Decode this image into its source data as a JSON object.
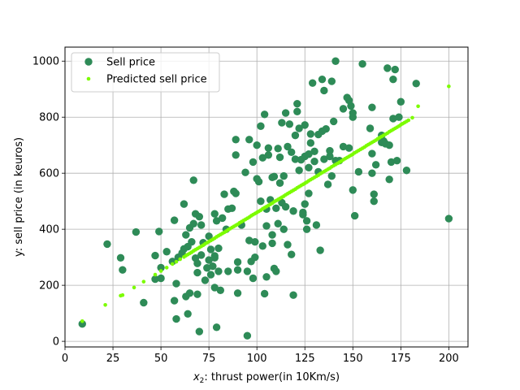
{
  "chart_data": {
    "type": "scatter",
    "xlabel_math": "x",
    "xlabel_sub": "2",
    "xlabel_rest": ": thrust power(in 10Km/s)",
    "ylabel": "y: sell price (in keuros)",
    "xlim": [
      0,
      210
    ],
    "ylim": [
      -20,
      1050
    ],
    "xticks": [
      0,
      25,
      50,
      75,
      100,
      125,
      150,
      175,
      200
    ],
    "yticks": [
      0,
      200,
      400,
      600,
      800,
      1000
    ],
    "grid": true,
    "legend_position": "top-left",
    "series": [
      {
        "name": "Sell price",
        "color": "#2e8b57",
        "marker": "large-circle",
        "points": [
          [
            9,
            62
          ],
          [
            22,
            347
          ],
          [
            29,
            298
          ],
          [
            30,
            255
          ],
          [
            37,
            390
          ],
          [
            41,
            138
          ],
          [
            47,
            222
          ],
          [
            47,
            306
          ],
          [
            49,
            392
          ],
          [
            50,
            225
          ],
          [
            50,
            263
          ],
          [
            53,
            320
          ],
          [
            56,
            285
          ],
          [
            57,
            145
          ],
          [
            57,
            432
          ],
          [
            58,
            80
          ],
          [
            58,
            206
          ],
          [
            59,
            300
          ],
          [
            61,
            315
          ],
          [
            62,
            330
          ],
          [
            62,
            490
          ],
          [
            63,
            380
          ],
          [
            63,
            160
          ],
          [
            64,
            338
          ],
          [
            64,
            98
          ],
          [
            65,
            172
          ],
          [
            65,
            405
          ],
          [
            66,
            355
          ],
          [
            67,
            575
          ],
          [
            67,
            420
          ],
          [
            68,
            455
          ],
          [
            68,
            297
          ],
          [
            69,
            278
          ],
          [
            69,
            168
          ],
          [
            69,
            245
          ],
          [
            70,
            35
          ],
          [
            70,
            445
          ],
          [
            71,
            308
          ],
          [
            71,
            415
          ],
          [
            72,
            352
          ],
          [
            73,
            218
          ],
          [
            74,
            262
          ],
          [
            75,
            375
          ],
          [
            75,
            290
          ],
          [
            76,
            238
          ],
          [
            76,
            328
          ],
          [
            77,
            268
          ],
          [
            78,
            298
          ],
          [
            78,
            455
          ],
          [
            78,
            305
          ],
          [
            78,
            192
          ],
          [
            79,
            430
          ],
          [
            79,
            50
          ],
          [
            80,
            250
          ],
          [
            80,
            332
          ],
          [
            81,
            182
          ],
          [
            82,
            440
          ],
          [
            83,
            525
          ],
          [
            84,
            400
          ],
          [
            85,
            250
          ],
          [
            85,
            472
          ],
          [
            87,
            475
          ],
          [
            88,
            535
          ],
          [
            89,
            665
          ],
          [
            89,
            720
          ],
          [
            89,
            528
          ],
          [
            90,
            255
          ],
          [
            90,
            172
          ],
          [
            90,
            283
          ],
          [
            92,
            415
          ],
          [
            94,
            603
          ],
          [
            95,
            250
          ],
          [
            95,
            20
          ],
          [
            96,
            720
          ],
          [
            96,
            360
          ],
          [
            97,
            285
          ],
          [
            98,
            640
          ],
          [
            98,
            225
          ],
          [
            99,
            300
          ],
          [
            99,
            355
          ],
          [
            100,
            700
          ],
          [
            100,
            580
          ],
          [
            101,
            570
          ],
          [
            102,
            768
          ],
          [
            102,
            500
          ],
          [
            103,
            655
          ],
          [
            103,
            340
          ],
          [
            104,
            810
          ],
          [
            104,
            170
          ],
          [
            105,
            412
          ],
          [
            105,
            230
          ],
          [
            105,
            472
          ],
          [
            106,
            690
          ],
          [
            106,
            665
          ],
          [
            107,
            505
          ],
          [
            108,
            585
          ],
          [
            108,
            350
          ],
          [
            108,
            380
          ],
          [
            109,
            588
          ],
          [
            109,
            260
          ],
          [
            110,
            250
          ],
          [
            110,
            475
          ],
          [
            111,
            688
          ],
          [
            111,
            420
          ],
          [
            112,
            657
          ],
          [
            112,
            565
          ],
          [
            113,
            780
          ],
          [
            113,
            495
          ],
          [
            114,
            590
          ],
          [
            114,
            400
          ],
          [
            115,
            815
          ],
          [
            115,
            480
          ],
          [
            116,
            695
          ],
          [
            116,
            345
          ],
          [
            117,
            775
          ],
          [
            118,
            675
          ],
          [
            118,
            310
          ],
          [
            119,
            165
          ],
          [
            119,
            465
          ],
          [
            120,
            650
          ],
          [
            120,
            735
          ],
          [
            121,
            848
          ],
          [
            121,
            820
          ],
          [
            122,
            760
          ],
          [
            122,
            610
          ],
          [
            123,
            648
          ],
          [
            124,
            452
          ],
          [
            124,
            460
          ],
          [
            125,
            660
          ],
          [
            125,
            772
          ],
          [
            125,
            490
          ],
          [
            126,
            430
          ],
          [
            126,
            400
          ],
          [
            127,
            668
          ],
          [
            127,
            528
          ],
          [
            127,
            620
          ],
          [
            128,
            708
          ],
          [
            128,
            740
          ],
          [
            129,
            922
          ],
          [
            130,
            678
          ],
          [
            130,
            642
          ],
          [
            131,
            415
          ],
          [
            132,
            605
          ],
          [
            132,
            738
          ],
          [
            133,
            325
          ],
          [
            134,
            935
          ],
          [
            134,
            750
          ],
          [
            135,
            895
          ],
          [
            135,
            650
          ],
          [
            136,
            758
          ],
          [
            137,
            560
          ],
          [
            138,
            680
          ],
          [
            138,
            660
          ],
          [
            139,
            590
          ],
          [
            139,
            928
          ],
          [
            140,
            785
          ],
          [
            141,
            1000
          ],
          [
            141,
            645
          ],
          [
            143,
            645
          ],
          [
            145,
            695
          ],
          [
            145,
            830
          ],
          [
            147,
            870
          ],
          [
            148,
            860
          ],
          [
            148,
            690
          ],
          [
            149,
            840
          ],
          [
            150,
            800
          ],
          [
            150,
            815
          ],
          [
            150,
            540
          ],
          [
            151,
            448
          ],
          [
            153,
            605
          ],
          [
            155,
            990
          ],
          [
            159,
            760
          ],
          [
            160,
            670
          ],
          [
            160,
            600
          ],
          [
            160,
            835
          ],
          [
            161,
            525
          ],
          [
            161,
            500
          ],
          [
            162,
            630
          ],
          [
            165,
            735
          ],
          [
            165,
            710
          ],
          [
            166,
            715
          ],
          [
            167,
            705
          ],
          [
            168,
            975
          ],
          [
            169,
            578
          ],
          [
            169,
            700
          ],
          [
            170,
            640
          ],
          [
            171,
            935
          ],
          [
            171,
            795
          ],
          [
            172,
            970
          ],
          [
            173,
            645
          ],
          [
            174,
            800
          ],
          [
            175,
            855
          ],
          [
            178,
            610
          ],
          [
            183,
            920
          ],
          [
            200,
            438
          ]
        ]
      },
      {
        "name": "Predicted sell price",
        "color": "#7cfc00",
        "marker": "small-dot",
        "points": [
          [
            9,
            72
          ],
          [
            21,
            130
          ],
          [
            29,
            163
          ],
          [
            30,
            165
          ],
          [
            36,
            192
          ],
          [
            41,
            213
          ],
          [
            47,
            238
          ],
          [
            50,
            251
          ],
          [
            53,
            263
          ],
          [
            56,
            276
          ],
          [
            58,
            284
          ],
          [
            60,
            293
          ],
          [
            62,
            301
          ],
          [
            63,
            306
          ],
          [
            64,
            310
          ],
          [
            65,
            314
          ],
          [
            66,
            318
          ],
          [
            67,
            323
          ],
          [
            68,
            327
          ],
          [
            69,
            331
          ],
          [
            70,
            335
          ],
          [
            71,
            339
          ],
          [
            72,
            343
          ],
          [
            73,
            348
          ],
          [
            74,
            352
          ],
          [
            75,
            356
          ],
          [
            76,
            360
          ],
          [
            77,
            364
          ],
          [
            78,
            368
          ],
          [
            79,
            373
          ],
          [
            80,
            377
          ],
          [
            81,
            381
          ],
          [
            82,
            385
          ],
          [
            83,
            389
          ],
          [
            84,
            393
          ],
          [
            85,
            398
          ],
          [
            86,
            402
          ],
          [
            87,
            406
          ],
          [
            88,
            410
          ],
          [
            89,
            414
          ],
          [
            90,
            418
          ],
          [
            91,
            423
          ],
          [
            92,
            427
          ],
          [
            93,
            431
          ],
          [
            94,
            435
          ],
          [
            95,
            439
          ],
          [
            96,
            443
          ],
          [
            97,
            448
          ],
          [
            98,
            452
          ],
          [
            99,
            456
          ],
          [
            100,
            460
          ],
          [
            101,
            464
          ],
          [
            102,
            468
          ],
          [
            103,
            473
          ],
          [
            104,
            477
          ],
          [
            105,
            481
          ],
          [
            106,
            485
          ],
          [
            107,
            489
          ],
          [
            108,
            493
          ],
          [
            109,
            498
          ],
          [
            110,
            502
          ],
          [
            111,
            506
          ],
          [
            112,
            510
          ],
          [
            113,
            514
          ],
          [
            114,
            518
          ],
          [
            115,
            523
          ],
          [
            116,
            527
          ],
          [
            117,
            531
          ],
          [
            118,
            535
          ],
          [
            119,
            539
          ],
          [
            120,
            543
          ],
          [
            121,
            548
          ],
          [
            122,
            552
          ],
          [
            123,
            556
          ],
          [
            124,
            560
          ],
          [
            125,
            564
          ],
          [
            126,
            568
          ],
          [
            127,
            573
          ],
          [
            128,
            577
          ],
          [
            129,
            581
          ],
          [
            130,
            585
          ],
          [
            131,
            589
          ],
          [
            132,
            593
          ],
          [
            133,
            598
          ],
          [
            134,
            602
          ],
          [
            135,
            606
          ],
          [
            136,
            610
          ],
          [
            137,
            614
          ],
          [
            138,
            618
          ],
          [
            139,
            623
          ],
          [
            140,
            627
          ],
          [
            141,
            631
          ],
          [
            142,
            635
          ],
          [
            143,
            639
          ],
          [
            144,
            643
          ],
          [
            145,
            648
          ],
          [
            146,
            652
          ],
          [
            147,
            656
          ],
          [
            148,
            660
          ],
          [
            149,
            664
          ],
          [
            150,
            668
          ],
          [
            151,
            673
          ],
          [
            152,
            677
          ],
          [
            153,
            681
          ],
          [
            154,
            685
          ],
          [
            155,
            689
          ],
          [
            156,
            693
          ],
          [
            157,
            698
          ],
          [
            158,
            702
          ],
          [
            159,
            706
          ],
          [
            160,
            710
          ],
          [
            161,
            714
          ],
          [
            162,
            718
          ],
          [
            163,
            723
          ],
          [
            164,
            727
          ],
          [
            165,
            731
          ],
          [
            166,
            735
          ],
          [
            167,
            739
          ],
          [
            168,
            743
          ],
          [
            169,
            748
          ],
          [
            170,
            752
          ],
          [
            171,
            756
          ],
          [
            172,
            760
          ],
          [
            173,
            764
          ],
          [
            174,
            768
          ],
          [
            175,
            773
          ],
          [
            176,
            777
          ],
          [
            177,
            781
          ],
          [
            178,
            785
          ],
          [
            179,
            789
          ],
          [
            181,
            798
          ],
          [
            184,
            839
          ],
          [
            200,
            910
          ]
        ]
      }
    ]
  }
}
